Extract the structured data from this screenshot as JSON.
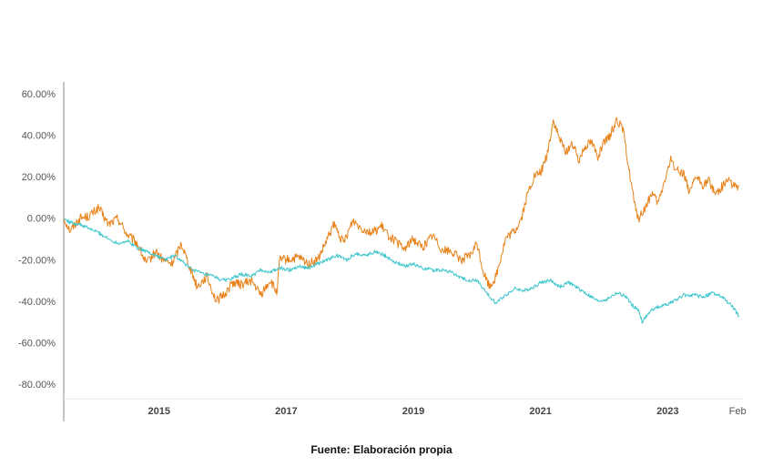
{
  "colors": {
    "orange": "#e8821a",
    "teal": "#3ec6cc",
    "gridline": "#e6e6e6",
    "axis": "#888888"
  },
  "source_text": "Fuente: Elaboración propia",
  "chart_data": {
    "type": "line",
    "title": "",
    "xlabel": "",
    "ylabel": "",
    "x_start": 2013.5,
    "x_end": 2024.17,
    "ylim": [
      -0.9,
      0.65
    ],
    "yticks": [
      {
        "value": 0.6,
        "label": "60.00%"
      },
      {
        "value": 0.4,
        "label": "40.00%"
      },
      {
        "value": 0.2,
        "label": "20.00%"
      },
      {
        "value": 0.0,
        "label": "0.00%"
      },
      {
        "value": -0.2,
        "label": "-20.00%"
      },
      {
        "value": -0.4,
        "label": "-40.00%"
      },
      {
        "value": -0.6,
        "label": "-60.00%"
      },
      {
        "value": -0.8,
        "label": "-80.00%"
      }
    ],
    "xticks": [
      {
        "value": 2015,
        "label": "2015",
        "style": "bold"
      },
      {
        "value": 2017,
        "label": "2017",
        "style": "bold"
      },
      {
        "value": 2019,
        "label": "2019",
        "style": "bold"
      },
      {
        "value": 2021,
        "label": "2021",
        "style": "bold"
      },
      {
        "value": 2023,
        "label": "2023",
        "style": "bold"
      },
      {
        "value": 2024.1,
        "label": "Feb",
        "style": "plain"
      }
    ],
    "grid": false,
    "series": [
      {
        "color": "#e8821a",
        "x": [
          2013.5,
          2013.6,
          2013.75,
          2013.9,
          2014.05,
          2014.2,
          2014.35,
          2014.5,
          2014.65,
          2014.8,
          2014.95,
          2015.05,
          2015.2,
          2015.35,
          2015.5,
          2015.6,
          2015.75,
          2015.9,
          2016.05,
          2016.15,
          2016.3,
          2016.45,
          2016.6,
          2016.75,
          2016.85,
          2016.9,
          2017.05,
          2017.2,
          2017.35,
          2017.5,
          2017.65,
          2017.75,
          2017.9,
          2018.05,
          2018.2,
          2018.35,
          2018.5,
          2018.6,
          2018.75,
          2018.85,
          2019.0,
          2019.15,
          2019.3,
          2019.45,
          2019.6,
          2019.75,
          2019.9,
          2020.0,
          2020.1,
          2020.2,
          2020.3,
          2020.45,
          2020.6,
          2020.7,
          2020.8,
          2020.9,
          2021.0,
          2021.1,
          2021.2,
          2021.3,
          2021.4,
          2021.5,
          2021.6,
          2021.7,
          2021.8,
          2021.9,
          2022.0,
          2022.1,
          2022.2,
          2022.3,
          2022.4,
          2022.5,
          2022.55,
          2022.65,
          2022.75,
          2022.85,
          2022.95,
          2023.05,
          2023.15,
          2023.25,
          2023.35,
          2023.45,
          2023.55,
          2023.65,
          2023.75,
          2023.85,
          2023.95,
          2024.05,
          2024.12
        ],
        "y": [
          0.0,
          -0.06,
          0.0,
          0.01,
          0.05,
          -0.03,
          0.0,
          -0.08,
          -0.12,
          -0.22,
          -0.16,
          -0.2,
          -0.22,
          -0.12,
          -0.25,
          -0.33,
          -0.28,
          -0.4,
          -0.36,
          -0.31,
          -0.32,
          -0.3,
          -0.37,
          -0.3,
          -0.36,
          -0.2,
          -0.2,
          -0.19,
          -0.22,
          -0.2,
          -0.1,
          -0.03,
          -0.12,
          -0.01,
          -0.05,
          -0.07,
          -0.04,
          -0.08,
          -0.12,
          -0.15,
          -0.1,
          -0.14,
          -0.08,
          -0.15,
          -0.16,
          -0.2,
          -0.18,
          -0.12,
          -0.26,
          -0.33,
          -0.28,
          -0.1,
          -0.06,
          0.0,
          0.12,
          0.2,
          0.22,
          0.3,
          0.47,
          0.38,
          0.32,
          0.36,
          0.28,
          0.35,
          0.37,
          0.3,
          0.36,
          0.4,
          0.48,
          0.42,
          0.22,
          0.03,
          0.0,
          0.05,
          0.12,
          0.07,
          0.18,
          0.28,
          0.23,
          0.22,
          0.12,
          0.2,
          0.16,
          0.18,
          0.12,
          0.15,
          0.19,
          0.15,
          0.16
        ]
      },
      {
        "color": "#3ec6cc",
        "x": [
          2013.5,
          2013.6,
          2013.75,
          2013.9,
          2014.05,
          2014.2,
          2014.35,
          2014.5,
          2014.65,
          2014.8,
          2014.95,
          2015.1,
          2015.25,
          2015.4,
          2015.55,
          2015.7,
          2015.85,
          2016.0,
          2016.15,
          2016.3,
          2016.45,
          2016.6,
          2016.75,
          2016.9,
          2017.05,
          2017.2,
          2017.35,
          2017.5,
          2017.65,
          2017.8,
          2017.95,
          2018.1,
          2018.25,
          2018.4,
          2018.55,
          2018.7,
          2018.85,
          2019.0,
          2019.15,
          2019.3,
          2019.45,
          2019.6,
          2019.75,
          2019.9,
          2020.0,
          2020.1,
          2020.2,
          2020.3,
          2020.45,
          2020.6,
          2020.75,
          2020.9,
          2021.0,
          2021.15,
          2021.3,
          2021.45,
          2021.6,
          2021.75,
          2021.9,
          2022.05,
          2022.2,
          2022.35,
          2022.45,
          2022.55,
          2022.6,
          2022.7,
          2022.8,
          2022.95,
          2023.1,
          2023.25,
          2023.4,
          2023.55,
          2023.7,
          2023.85,
          2024.0,
          2024.12
        ],
        "y": [
          0.0,
          -0.02,
          -0.03,
          -0.05,
          -0.07,
          -0.1,
          -0.12,
          -0.11,
          -0.14,
          -0.16,
          -0.18,
          -0.2,
          -0.18,
          -0.22,
          -0.25,
          -0.27,
          -0.28,
          -0.3,
          -0.29,
          -0.27,
          -0.28,
          -0.25,
          -0.26,
          -0.24,
          -0.25,
          -0.23,
          -0.24,
          -0.22,
          -0.2,
          -0.18,
          -0.2,
          -0.17,
          -0.18,
          -0.16,
          -0.18,
          -0.21,
          -0.23,
          -0.22,
          -0.24,
          -0.25,
          -0.25,
          -0.26,
          -0.29,
          -0.3,
          -0.3,
          -0.34,
          -0.38,
          -0.41,
          -0.37,
          -0.34,
          -0.35,
          -0.33,
          -0.31,
          -0.3,
          -0.33,
          -0.31,
          -0.34,
          -0.37,
          -0.4,
          -0.39,
          -0.36,
          -0.38,
          -0.42,
          -0.45,
          -0.5,
          -0.46,
          -0.43,
          -0.42,
          -0.4,
          -0.37,
          -0.37,
          -0.38,
          -0.36,
          -0.38,
          -0.42,
          -0.47
        ]
      }
    ]
  }
}
